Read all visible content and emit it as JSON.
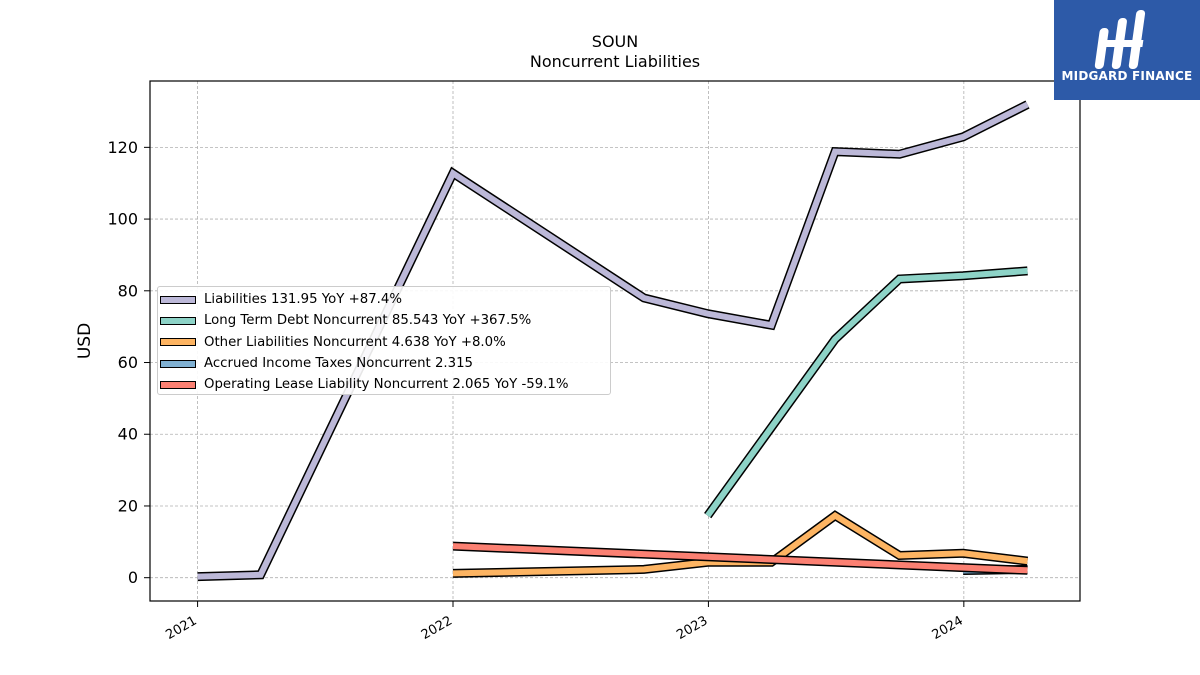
{
  "logo": {
    "text": "MIDGARD FINANCE",
    "icon": "midgard-m-logo-icon",
    "background": "#2d5aa8"
  },
  "chart_data": {
    "type": "line",
    "title": "SOUN",
    "subtitle": "Noncurrent  Liabilities",
    "ylabel": "USD",
    "xlabel": "",
    "xlim": [
      "2020-10-25",
      "2024-06-15"
    ],
    "ylim": [
      -6.5,
      138.5
    ],
    "y_ticks": [
      0,
      20,
      40,
      60,
      80,
      100,
      120
    ],
    "x_ticks": [
      {
        "date": "2021-01-01",
        "label": "2021"
      },
      {
        "date": "2022-01-01",
        "label": "2022"
      },
      {
        "date": "2023-01-01",
        "label": "2023"
      },
      {
        "date": "2024-01-01",
        "label": "2024"
      }
    ],
    "grid": true,
    "legend_position": "center-left",
    "series": [
      {
        "name": "Liabilities",
        "legend": "Liabilities  131.95 YoY +87.4%",
        "color": "#bcb8d8",
        "points": [
          {
            "x": "2021-01-01",
            "y": 0.3
          },
          {
            "x": "2021-04-01",
            "y": 0.8
          },
          {
            "x": "2022-01-01",
            "y": 112.8
          },
          {
            "x": "2022-10-01",
            "y": 78.0
          },
          {
            "x": "2022-12-31",
            "y": 73.6
          },
          {
            "x": "2023-04-01",
            "y": 70.4
          },
          {
            "x": "2023-07-01",
            "y": 118.8
          },
          {
            "x": "2023-10-01",
            "y": 118.1
          },
          {
            "x": "2023-12-31",
            "y": 122.9
          },
          {
            "x": "2024-04-01",
            "y": 131.95
          }
        ]
      },
      {
        "name": "Long Term Debt Noncurrent",
        "legend": "Long Term Debt Noncurrent  85.543 YoY +367.5%",
        "color": "#8dd3c7",
        "points": [
          {
            "x": "2022-12-31",
            "y": 17.3
          },
          {
            "x": "2023-07-01",
            "y": 66.5
          },
          {
            "x": "2023-10-01",
            "y": 83.3
          },
          {
            "x": "2023-12-31",
            "y": 84.2
          },
          {
            "x": "2024-04-01",
            "y": 85.543
          }
        ]
      },
      {
        "name": "Other Liabilities Noncurrent",
        "legend": "Other Liabilities Noncurrent  4.638 YoY +8.0%",
        "color": "#fdb462",
        "points": [
          {
            "x": "2022-01-01",
            "y": 1.2
          },
          {
            "x": "2022-10-01",
            "y": 2.3
          },
          {
            "x": "2022-12-31",
            "y": 4.3
          },
          {
            "x": "2023-04-01",
            "y": 4.3
          },
          {
            "x": "2023-07-01",
            "y": 17.3
          },
          {
            "x": "2023-10-01",
            "y": 6.2
          },
          {
            "x": "2023-12-31",
            "y": 6.8
          },
          {
            "x": "2024-04-01",
            "y": 4.638
          }
        ]
      },
      {
        "name": "Accrued Income Taxes Noncurrent",
        "legend": "Accrued Income Taxes Noncurrent  2.315",
        "color": "#80b1d3",
        "points": [
          {
            "x": "2023-12-31",
            "y": 2.0
          },
          {
            "x": "2024-04-01",
            "y": 2.315
          }
        ]
      },
      {
        "name": "Operating Lease Liability Noncurrent",
        "legend": "Operating Lease Liability Noncurrent  2.065 YoY -59.1%",
        "color": "#fb8072",
        "points": [
          {
            "x": "2022-01-01",
            "y": 8.8
          },
          {
            "x": "2024-04-01",
            "y": 2.065
          }
        ]
      }
    ]
  }
}
